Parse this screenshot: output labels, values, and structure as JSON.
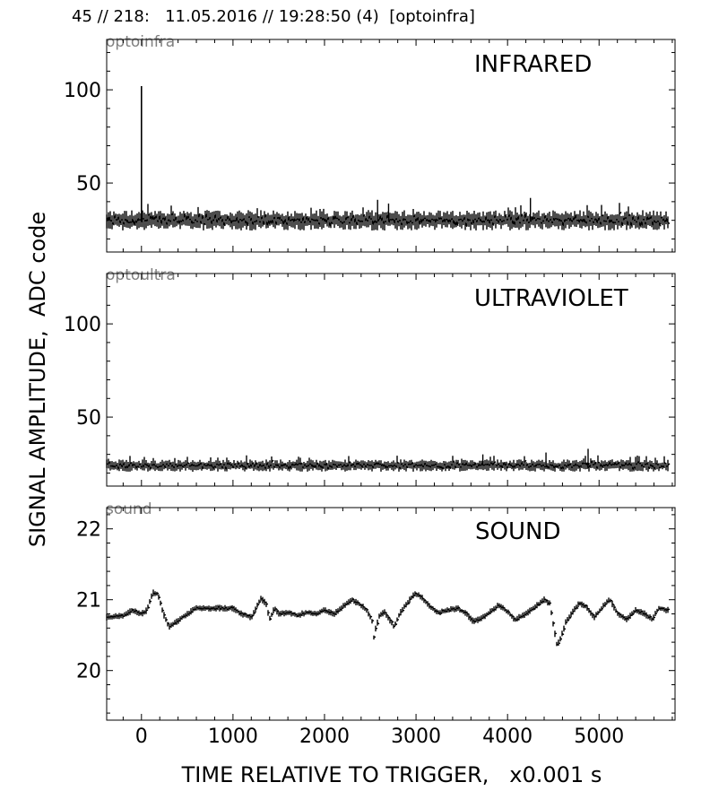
{
  "title": "45 // 218:   11.05.2016 // 19:28:50 (4)  [optoinfra]",
  "ylabel": "SIGNAL AMPLITUDE,  ADC code",
  "xlabel": "TIME RELATIVE TO TRIGGER,   x0.001 s",
  "chart_data": [
    {
      "type": "line",
      "channel_label": "optoinfra",
      "annotation": "INFRARED",
      "xlim": [
        -380,
        5830
      ],
      "ylim": [
        13,
        127
      ],
      "x_ticks": [
        0,
        1000,
        2000,
        3000,
        4000,
        5000
      ],
      "y_ticks": [
        50,
        100
      ],
      "series_color": "#000000",
      "baseline": 30,
      "noise_amplitude": 5,
      "x_range": [
        -380,
        5760
      ],
      "spike": {
        "x": 0,
        "y": 102
      },
      "minor_peaks": [
        {
          "x": 2580,
          "y": 41
        },
        {
          "x": 2700,
          "y": 39
        },
        {
          "x": 4250,
          "y": 42
        }
      ]
    },
    {
      "type": "line",
      "channel_label": "optoultra",
      "annotation": "ULTRAVIOLET",
      "xlim": [
        -380,
        5830
      ],
      "ylim": [
        13,
        127
      ],
      "x_ticks": [
        0,
        1000,
        2000,
        3000,
        4000,
        5000
      ],
      "y_ticks": [
        50,
        100
      ],
      "series_color": "#000000",
      "baseline": 24,
      "noise_amplitude": 3,
      "x_range": [
        -380,
        5760
      ],
      "minor_peaks": [
        {
          "x": 3730,
          "y": 30
        },
        {
          "x": 4420,
          "y": 31
        },
        {
          "x": 4880,
          "y": 33
        }
      ]
    },
    {
      "type": "line",
      "channel_label": "sound",
      "annotation": "SOUND",
      "xlim": [
        -380,
        5830
      ],
      "ylim": [
        19.3,
        22.3
      ],
      "x_ticks": [
        0,
        1000,
        2000,
        3000,
        4000,
        5000
      ],
      "y_ticks": [
        20,
        21,
        22
      ],
      "series_color": "#000000",
      "noise_amplitude": 0.04,
      "x_range": [
        -380,
        5760
      ],
      "points": [
        [
          -380,
          20.75
        ],
        [
          -200,
          20.78
        ],
        [
          -100,
          20.85
        ],
        [
          0,
          20.8
        ],
        [
          60,
          20.85
        ],
        [
          120,
          21.1
        ],
        [
          180,
          21.08
        ],
        [
          240,
          20.8
        ],
        [
          300,
          20.62
        ],
        [
          400,
          20.7
        ],
        [
          500,
          20.8
        ],
        [
          600,
          20.88
        ],
        [
          800,
          20.88
        ],
        [
          1000,
          20.88
        ],
        [
          1100,
          20.8
        ],
        [
          1200,
          20.75
        ],
        [
          1260,
          20.9
        ],
        [
          1300,
          21.02
        ],
        [
          1360,
          20.95
        ],
        [
          1400,
          20.72
        ],
        [
          1450,
          20.88
        ],
        [
          1500,
          20.8
        ],
        [
          1600,
          20.82
        ],
        [
          1700,
          20.78
        ],
        [
          1800,
          20.82
        ],
        [
          1900,
          20.8
        ],
        [
          2000,
          20.85
        ],
        [
          2100,
          20.8
        ],
        [
          2200,
          20.9
        ],
        [
          2300,
          21.0
        ],
        [
          2400,
          20.92
        ],
        [
          2460,
          20.85
        ],
        [
          2520,
          20.7
        ],
        [
          2540,
          20.45
        ],
        [
          2560,
          20.6
        ],
        [
          2600,
          20.78
        ],
        [
          2660,
          20.82
        ],
        [
          2720,
          20.7
        ],
        [
          2760,
          20.62
        ],
        [
          2820,
          20.8
        ],
        [
          2900,
          20.95
        ],
        [
          2980,
          21.08
        ],
        [
          3050,
          21.05
        ],
        [
          3150,
          20.9
        ],
        [
          3250,
          20.82
        ],
        [
          3350,
          20.85
        ],
        [
          3450,
          20.88
        ],
        [
          3550,
          20.8
        ],
        [
          3620,
          20.7
        ],
        [
          3700,
          20.72
        ],
        [
          3800,
          20.82
        ],
        [
          3900,
          20.92
        ],
        [
          3980,
          20.85
        ],
        [
          4080,
          20.72
        ],
        [
          4200,
          20.8
        ],
        [
          4300,
          20.9
        ],
        [
          4400,
          21.0
        ],
        [
          4460,
          20.95
        ],
        [
          4500,
          20.65
        ],
        [
          4540,
          20.35
        ],
        [
          4580,
          20.45
        ],
        [
          4640,
          20.7
        ],
        [
          4700,
          20.8
        ],
        [
          4780,
          20.95
        ],
        [
          4860,
          20.9
        ],
        [
          4950,
          20.75
        ],
        [
          5050,
          20.92
        ],
        [
          5120,
          21.0
        ],
        [
          5200,
          20.8
        ],
        [
          5300,
          20.72
        ],
        [
          5400,
          20.85
        ],
        [
          5500,
          20.8
        ],
        [
          5580,
          20.72
        ],
        [
          5650,
          20.88
        ],
        [
          5760,
          20.85
        ]
      ]
    }
  ]
}
